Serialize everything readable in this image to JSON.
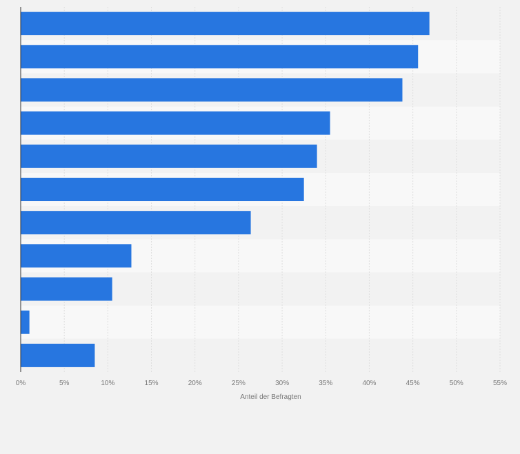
{
  "chart_data": {
    "type": "bar",
    "orientation": "horizontal",
    "categories": [
      "",
      "",
      "",
      "",
      "",
      "",
      "",
      "",
      "",
      "",
      ""
    ],
    "values": [
      46.9,
      45.6,
      43.8,
      35.5,
      34.0,
      32.5,
      26.4,
      12.7,
      10.5,
      1.0,
      8.5
    ],
    "xlabel": "Anteil der Befragten",
    "ylabel": "",
    "xlim": [
      0,
      55
    ],
    "xticks": [
      "0%",
      "5%",
      "10%",
      "15%",
      "20%",
      "25%",
      "30%",
      "35%",
      "40%",
      "45%",
      "50%",
      "55%"
    ],
    "grid": true,
    "bar_color": "#2776e0"
  }
}
